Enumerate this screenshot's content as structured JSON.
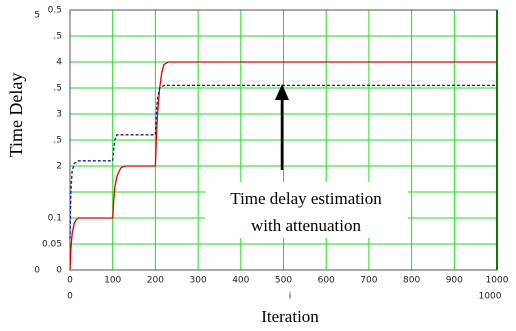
{
  "chart_data": {
    "type": "line",
    "xlabel": "Iteration",
    "ylabel": "Time Delay",
    "xlim": [
      0,
      1000
    ],
    "xticks": [
      0,
      100,
      200,
      300,
      400,
      500,
      600,
      700,
      800,
      900,
      1000
    ],
    "ylim": [
      0,
      0.5
    ],
    "yticks": [
      0,
      0.05,
      0.1,
      {
        "value": 0.15,
        "label": null
      },
      {
        "value": 0.2,
        "label": "2"
      },
      {
        "value": 0.25,
        "label": ".5"
      },
      {
        "value": 0.3,
        "label": "3"
      },
      {
        "value": 0.35,
        "label": ".5"
      },
      {
        "value": 0.4,
        "label": "4"
      },
      {
        "value": 0.45,
        "label": ".5"
      },
      0.5
    ],
    "grid": true,
    "grid_color": "#22dd22",
    "series": [
      {
        "color": "#e00000",
        "style": "solid",
        "x": [
          0,
          2,
          5,
          10,
          15,
          20,
          30,
          100,
          102,
          105,
          110,
          115,
          120,
          130,
          200,
          202,
          205,
          210,
          215,
          220,
          230,
          1000
        ],
        "values": [
          0,
          0.04,
          0.07,
          0.09,
          0.097,
          0.1,
          0.1,
          0.1,
          0.13,
          0.16,
          0.18,
          0.19,
          0.197,
          0.2,
          0.2,
          0.25,
          0.3,
          0.35,
          0.38,
          0.395,
          0.4,
          0.4
        ]
      },
      {
        "color": "#1a1aa0",
        "style": "dashed",
        "x": [
          0,
          2,
          5,
          10,
          20,
          100,
          102,
          105,
          110,
          120,
          200,
          202,
          205,
          210,
          220,
          1000
        ],
        "values": [
          0.06,
          0.15,
          0.19,
          0.205,
          0.21,
          0.21,
          0.23,
          0.25,
          0.26,
          0.26,
          0.26,
          0.3,
          0.33,
          0.35,
          0.355,
          0.355
        ]
      }
    ],
    "callout": [
      "Time delay estimation",
      "with attenuation"
    ],
    "axis_notes": [
      "5",
      "0",
      "0",
      "i",
      "1000"
    ]
  }
}
